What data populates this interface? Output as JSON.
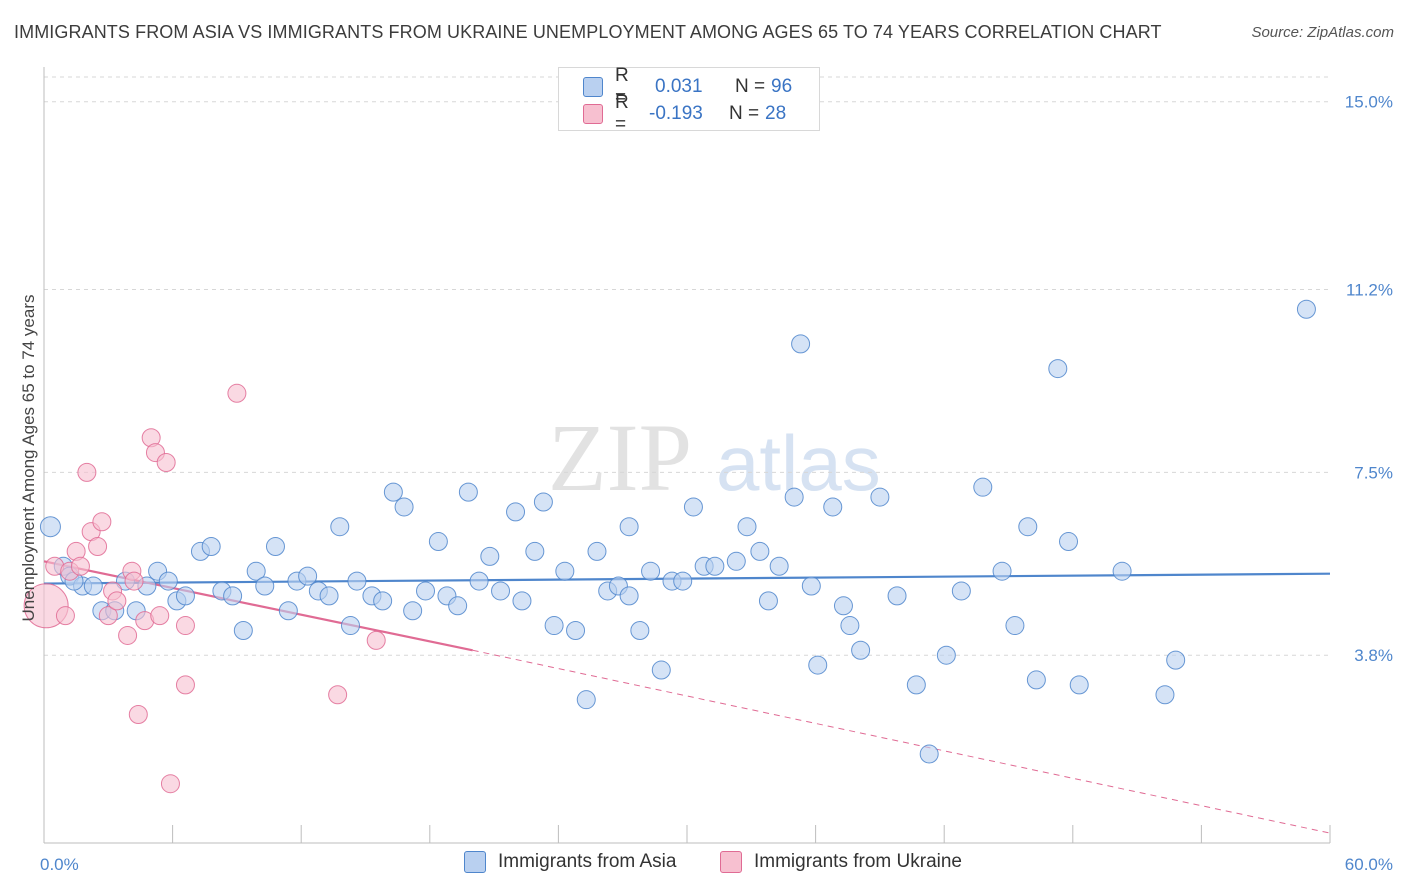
{
  "title": "IMMIGRANTS FROM ASIA VS IMMIGRANTS FROM UKRAINE UNEMPLOYMENT AMONG AGES 65 TO 74 YEARS CORRELATION CHART",
  "source": "Source: ZipAtlas.com",
  "watermark": {
    "zip": "ZIP",
    "atlas": "atlas"
  },
  "colors": {
    "asia": "#4f86cc",
    "asia_fill": "#b9d0f0",
    "ukraine": "#e06b94",
    "ukraine_fill": "#f7c0d0",
    "grid": "#d7d7d7",
    "tick_text": "#4f86cc"
  },
  "legend": [
    {
      "swatch": "asia",
      "r_label": "R =",
      "r_value": "0.031",
      "n_label": "N =",
      "n_value": "96"
    },
    {
      "swatch": "ukraine",
      "r_label": "R =",
      "r_value": "-0.193",
      "n_label": "N =",
      "n_value": "28"
    }
  ],
  "bottom_legend": [
    "Immigrants from Asia",
    "Immigrants from Ukraine"
  ],
  "chart_data": {
    "type": "scatter",
    "title": "IMMIGRANTS FROM ASIA VS IMMIGRANTS FROM UKRAINE UNEMPLOYMENT AMONG AGES 65 TO 74 YEARS CORRELATION CHART",
    "xlabel": "",
    "ylabel": "Unemployment Among Ages 65 to 74 years",
    "xlim": [
      0,
      60
    ],
    "ylim": [
      0,
      15.5
    ],
    "x_tick_labels": [
      {
        "value": 0,
        "label": "0.0%"
      },
      {
        "value": 60,
        "label": "60.0%"
      }
    ],
    "y_ticks": [
      {
        "value": 3.8,
        "label": "3.8%"
      },
      {
        "value": 7.5,
        "label": "7.5%"
      },
      {
        "value": 11.2,
        "label": "11.2%"
      },
      {
        "value": 15.0,
        "label": "15.0%"
      }
    ],
    "series": [
      {
        "name": "Immigrants from Asia",
        "color": "asia",
        "R": 0.031,
        "N": 96,
        "trend": {
          "x": [
            0,
            60
          ],
          "y": [
            5.25,
            5.45
          ],
          "dashed_extension": false
        },
        "points": [
          [
            0.3,
            6.4
          ],
          [
            0.9,
            5.6
          ],
          [
            1.2,
            5.4
          ],
          [
            1.8,
            5.2
          ],
          [
            2.3,
            5.2
          ],
          [
            2.7,
            4.7
          ],
          [
            3.3,
            4.7
          ],
          [
            3.8,
            5.3
          ],
          [
            4.3,
            4.7
          ],
          [
            4.8,
            5.2
          ],
          [
            5.3,
            5.5
          ],
          [
            5.8,
            5.3
          ],
          [
            6.2,
            4.9
          ],
          [
            6.6,
            5.0
          ],
          [
            7.3,
            5.9
          ],
          [
            7.8,
            6.0
          ],
          [
            8.3,
            5.1
          ],
          [
            8.8,
            5.0
          ],
          [
            9.3,
            4.3
          ],
          [
            9.9,
            5.5
          ],
          [
            10.3,
            5.2
          ],
          [
            10.8,
            6.0
          ],
          [
            11.4,
            4.7
          ],
          [
            11.8,
            5.3
          ],
          [
            12.3,
            5.4
          ],
          [
            12.8,
            5.1
          ],
          [
            13.3,
            5.0
          ],
          [
            13.8,
            6.4
          ],
          [
            14.3,
            4.4
          ],
          [
            14.6,
            5.3
          ],
          [
            15.3,
            5.0
          ],
          [
            15.8,
            4.9
          ],
          [
            16.3,
            7.1
          ],
          [
            16.8,
            6.8
          ],
          [
            17.2,
            4.7
          ],
          [
            17.8,
            5.1
          ],
          [
            18.4,
            6.1
          ],
          [
            18.8,
            5.0
          ],
          [
            19.3,
            4.8
          ],
          [
            19.8,
            7.1
          ],
          [
            20.3,
            5.3
          ],
          [
            20.8,
            5.8
          ],
          [
            21.3,
            5.1
          ],
          [
            22.0,
            6.7
          ],
          [
            22.3,
            4.9
          ],
          [
            22.9,
            5.9
          ],
          [
            23.3,
            6.9
          ],
          [
            23.8,
            4.4
          ],
          [
            24.3,
            5.5
          ],
          [
            24.8,
            4.3
          ],
          [
            25.3,
            2.9
          ],
          [
            25.8,
            5.9
          ],
          [
            26.3,
            5.1
          ],
          [
            26.8,
            5.2
          ],
          [
            27.3,
            6.4
          ],
          [
            27.8,
            4.3
          ],
          [
            28.3,
            5.5
          ],
          [
            28.8,
            3.5
          ],
          [
            29.3,
            5.3
          ],
          [
            29.8,
            5.3
          ],
          [
            30.3,
            6.8
          ],
          [
            30.8,
            5.6
          ],
          [
            31.3,
            5.6
          ],
          [
            32.3,
            5.7
          ],
          [
            32.8,
            6.4
          ],
          [
            33.4,
            5.9
          ],
          [
            33.8,
            4.9
          ],
          [
            34.3,
            5.6
          ],
          [
            35.0,
            7.0
          ],
          [
            35.3,
            10.1
          ],
          [
            35.8,
            5.2
          ],
          [
            36.1,
            3.6
          ],
          [
            36.8,
            6.8
          ],
          [
            37.3,
            4.8
          ],
          [
            37.6,
            4.4
          ],
          [
            38.1,
            3.9
          ],
          [
            39.0,
            7.0
          ],
          [
            39.8,
            5.0
          ],
          [
            40.7,
            3.2
          ],
          [
            41.3,
            1.8
          ],
          [
            42.1,
            3.8
          ],
          [
            42.8,
            5.1
          ],
          [
            43.8,
            7.2
          ],
          [
            44.7,
            5.5
          ],
          [
            45.3,
            4.4
          ],
          [
            45.9,
            6.4
          ],
          [
            46.3,
            3.3
          ],
          [
            47.3,
            9.6
          ],
          [
            47.8,
            6.1
          ],
          [
            48.3,
            3.2
          ],
          [
            50.3,
            5.5
          ],
          [
            52.3,
            3.0
          ],
          [
            52.8,
            3.7
          ],
          [
            58.9,
            10.8
          ],
          [
            1.4,
            5.3
          ],
          [
            27.3,
            5.0
          ]
        ]
      },
      {
        "name": "Immigrants from Ukraine",
        "color": "ukraine",
        "R": -0.193,
        "N": 28,
        "trend": {
          "x": [
            0,
            20
          ],
          "y": [
            5.7,
            3.9
          ],
          "dashed_extension": {
            "x": [
              20,
              60
            ],
            "y": [
              3.9,
              0.2
            ]
          }
        },
        "points": [
          [
            0.1,
            4.8
          ],
          [
            0.5,
            5.6
          ],
          [
            1.0,
            4.6
          ],
          [
            1.2,
            5.5
          ],
          [
            1.5,
            5.9
          ],
          [
            2.0,
            7.5
          ],
          [
            2.2,
            6.3
          ],
          [
            2.5,
            6.0
          ],
          [
            2.7,
            6.5
          ],
          [
            3.0,
            4.6
          ],
          [
            3.2,
            5.1
          ],
          [
            3.4,
            4.9
          ],
          [
            3.9,
            4.2
          ],
          [
            4.1,
            5.5
          ],
          [
            4.4,
            2.6
          ],
          [
            4.7,
            4.5
          ],
          [
            5.0,
            8.2
          ],
          [
            5.2,
            7.9
          ],
          [
            5.4,
            4.6
          ],
          [
            5.7,
            7.7
          ],
          [
            5.9,
            1.2
          ],
          [
            6.6,
            3.2
          ],
          [
            6.6,
            4.4
          ],
          [
            9.0,
            9.1
          ],
          [
            13.7,
            3.0
          ],
          [
            15.5,
            4.1
          ],
          [
            4.2,
            5.3
          ],
          [
            1.7,
            5.6
          ]
        ]
      }
    ]
  }
}
